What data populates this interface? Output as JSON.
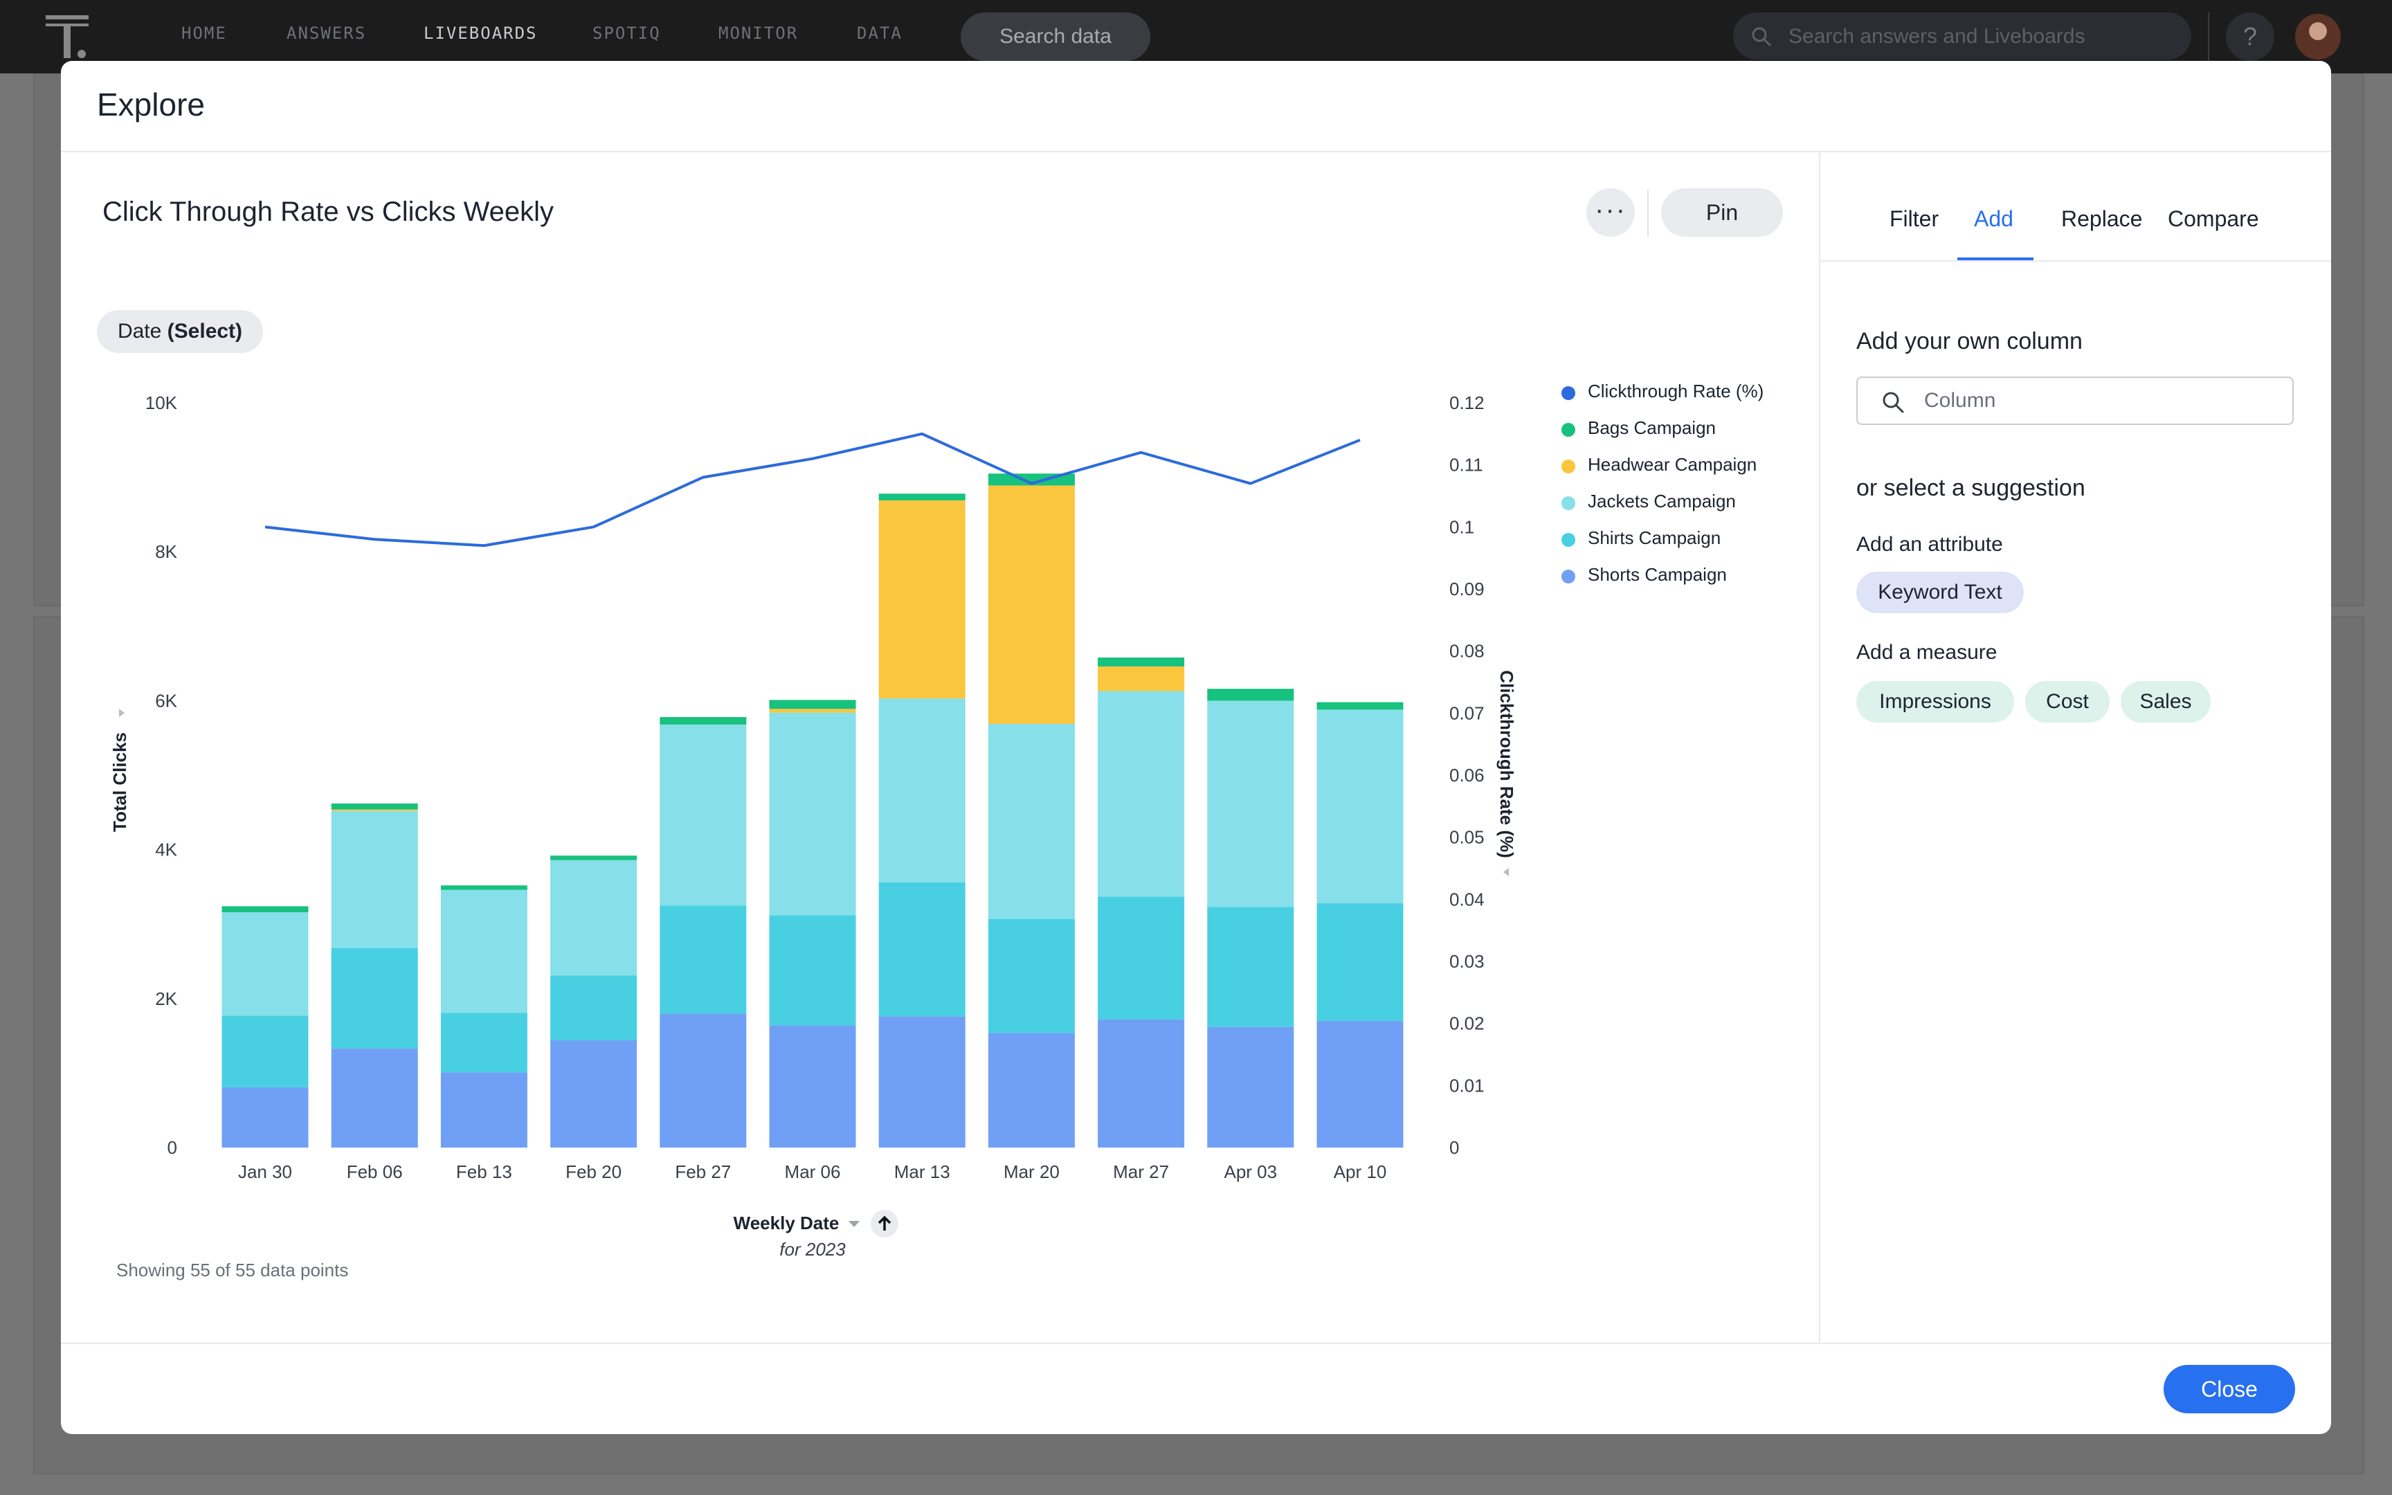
{
  "topnav": {
    "links": [
      "HOME",
      "ANSWERS",
      "LIVEBOARDS",
      "SPOTIQ",
      "MONITOR",
      "DATA"
    ],
    "active": "LIVEBOARDS",
    "search_data": "Search data",
    "global_search_placeholder": "Search answers and Liveboards",
    "help": "?"
  },
  "modal": {
    "title": "Explore",
    "chart_title": "Click Through Rate vs Clicks Weekly",
    "pin": "Pin",
    "more": "···",
    "date_chip": {
      "label": "Date",
      "value": "(Select)"
    },
    "x_axis_title": "Weekly Date",
    "x_axis_sub": "for 2023",
    "data_points": "Showing 55 of 55 data points",
    "close": "Close"
  },
  "panel": {
    "tabs": [
      "Filter",
      "Add",
      "Replace",
      "Compare"
    ],
    "active_tab": "Add",
    "add_column_title": "Add your own column",
    "column_placeholder": "Column",
    "suggestion_title": "or select a suggestion",
    "attribute_label": "Add an attribute",
    "attributes": [
      "Keyword Text"
    ],
    "measure_label": "Add a measure",
    "measures": [
      "Impressions",
      "Cost",
      "Sales"
    ]
  },
  "chart_data": {
    "type": "bar",
    "stacked": true,
    "title": "Click Through Rate vs Clicks Weekly",
    "categories": [
      "Jan 30",
      "Feb 06",
      "Feb 13",
      "Feb 20",
      "Feb 27",
      "Mar 06",
      "Mar 13",
      "Mar 20",
      "Mar 27",
      "Apr 03",
      "Apr 10"
    ],
    "xlabel": "Weekly Date",
    "ylabel": "Total Clicks",
    "y2label": "Clickthrough Rate (%)",
    "ylim": [
      0,
      10000
    ],
    "y2lim": [
      0,
      0.12
    ],
    "y_ticks": [
      "0",
      "2K",
      "4K",
      "6K",
      "8K",
      "10K"
    ],
    "y2_ticks": [
      "0",
      "0.01",
      "0.02",
      "0.03",
      "0.04",
      "0.05",
      "0.06",
      "0.07",
      "0.08",
      "0.09",
      "0.1",
      "0.11",
      "0.12"
    ],
    "legend_position": "right",
    "series": [
      {
        "name": "Shorts Campaign",
        "color": "#6fa0f5",
        "values": [
          810,
          1330,
          1010,
          1440,
          1800,
          1640,
          1760,
          1540,
          1720,
          1620,
          1700
        ]
      },
      {
        "name": "Shirts Campaign",
        "color": "#48d0e2",
        "values": [
          960,
          1350,
          800,
          870,
          1450,
          1480,
          1800,
          1530,
          1650,
          1610,
          1580
        ]
      },
      {
        "name": "Jackets Campaign",
        "color": "#86dfe9",
        "values": [
          1390,
          1840,
          1650,
          1550,
          2430,
          2720,
          2470,
          2620,
          2760,
          2770,
          2600
        ]
      },
      {
        "name": "Headwear Campaign",
        "color": "#f9c63d",
        "values": [
          0,
          20,
          0,
          0,
          0,
          50,
          2660,
          3200,
          330,
          0,
          0
        ]
      },
      {
        "name": "Bags Campaign",
        "color": "#17c17e",
        "values": [
          80,
          80,
          60,
          60,
          100,
          120,
          90,
          160,
          120,
          160,
          100
        ]
      },
      {
        "name": "Clickthrough Rate (%)",
        "type": "line",
        "axis": "right",
        "color": "#2c6bdb",
        "values": [
          0.1,
          0.098,
          0.097,
          0.1,
          0.108,
          0.111,
          0.115,
          0.107,
          0.112,
          0.107,
          0.114
        ]
      }
    ],
    "legend": [
      "Clickthrough Rate (%)",
      "Bags Campaign",
      "Headwear Campaign",
      "Jackets Campaign",
      "Shirts Campaign",
      "Shorts Campaign"
    ]
  }
}
